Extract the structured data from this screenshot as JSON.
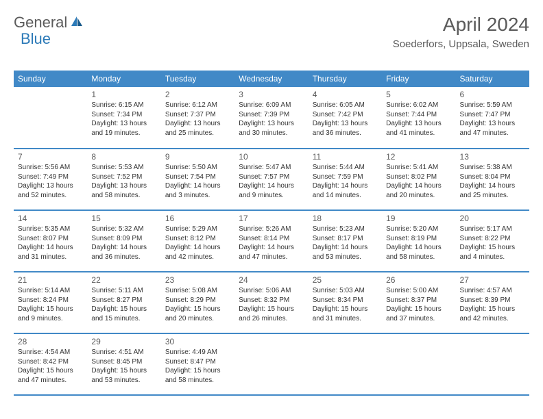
{
  "logo": {
    "general": "General",
    "blue": "Blue"
  },
  "title": {
    "month": "April 2024",
    "location": "Soederfors, Uppsala, Sweden"
  },
  "weekdays": [
    "Sunday",
    "Monday",
    "Tuesday",
    "Wednesday",
    "Thursday",
    "Friday",
    "Saturday"
  ],
  "colors": {
    "header_bg": "#4189c7",
    "accent": "#2c7ab8",
    "text_gray": "#5a5a5a"
  },
  "days": {
    "1": {
      "sunrise": "Sunrise: 6:15 AM",
      "sunset": "Sunset: 7:34 PM",
      "daylight": "Daylight: 13 hours and 19 minutes."
    },
    "2": {
      "sunrise": "Sunrise: 6:12 AM",
      "sunset": "Sunset: 7:37 PM",
      "daylight": "Daylight: 13 hours and 25 minutes."
    },
    "3": {
      "sunrise": "Sunrise: 6:09 AM",
      "sunset": "Sunset: 7:39 PM",
      "daylight": "Daylight: 13 hours and 30 minutes."
    },
    "4": {
      "sunrise": "Sunrise: 6:05 AM",
      "sunset": "Sunset: 7:42 PM",
      "daylight": "Daylight: 13 hours and 36 minutes."
    },
    "5": {
      "sunrise": "Sunrise: 6:02 AM",
      "sunset": "Sunset: 7:44 PM",
      "daylight": "Daylight: 13 hours and 41 minutes."
    },
    "6": {
      "sunrise": "Sunrise: 5:59 AM",
      "sunset": "Sunset: 7:47 PM",
      "daylight": "Daylight: 13 hours and 47 minutes."
    },
    "7": {
      "sunrise": "Sunrise: 5:56 AM",
      "sunset": "Sunset: 7:49 PM",
      "daylight": "Daylight: 13 hours and 52 minutes."
    },
    "8": {
      "sunrise": "Sunrise: 5:53 AM",
      "sunset": "Sunset: 7:52 PM",
      "daylight": "Daylight: 13 hours and 58 minutes."
    },
    "9": {
      "sunrise": "Sunrise: 5:50 AM",
      "sunset": "Sunset: 7:54 PM",
      "daylight": "Daylight: 14 hours and 3 minutes."
    },
    "10": {
      "sunrise": "Sunrise: 5:47 AM",
      "sunset": "Sunset: 7:57 PM",
      "daylight": "Daylight: 14 hours and 9 minutes."
    },
    "11": {
      "sunrise": "Sunrise: 5:44 AM",
      "sunset": "Sunset: 7:59 PM",
      "daylight": "Daylight: 14 hours and 14 minutes."
    },
    "12": {
      "sunrise": "Sunrise: 5:41 AM",
      "sunset": "Sunset: 8:02 PM",
      "daylight": "Daylight: 14 hours and 20 minutes."
    },
    "13": {
      "sunrise": "Sunrise: 5:38 AM",
      "sunset": "Sunset: 8:04 PM",
      "daylight": "Daylight: 14 hours and 25 minutes."
    },
    "14": {
      "sunrise": "Sunrise: 5:35 AM",
      "sunset": "Sunset: 8:07 PM",
      "daylight": "Daylight: 14 hours and 31 minutes."
    },
    "15": {
      "sunrise": "Sunrise: 5:32 AM",
      "sunset": "Sunset: 8:09 PM",
      "daylight": "Daylight: 14 hours and 36 minutes."
    },
    "16": {
      "sunrise": "Sunrise: 5:29 AM",
      "sunset": "Sunset: 8:12 PM",
      "daylight": "Daylight: 14 hours and 42 minutes."
    },
    "17": {
      "sunrise": "Sunrise: 5:26 AM",
      "sunset": "Sunset: 8:14 PM",
      "daylight": "Daylight: 14 hours and 47 minutes."
    },
    "18": {
      "sunrise": "Sunrise: 5:23 AM",
      "sunset": "Sunset: 8:17 PM",
      "daylight": "Daylight: 14 hours and 53 minutes."
    },
    "19": {
      "sunrise": "Sunrise: 5:20 AM",
      "sunset": "Sunset: 8:19 PM",
      "daylight": "Daylight: 14 hours and 58 minutes."
    },
    "20": {
      "sunrise": "Sunrise: 5:17 AM",
      "sunset": "Sunset: 8:22 PM",
      "daylight": "Daylight: 15 hours and 4 minutes."
    },
    "21": {
      "sunrise": "Sunrise: 5:14 AM",
      "sunset": "Sunset: 8:24 PM",
      "daylight": "Daylight: 15 hours and 9 minutes."
    },
    "22": {
      "sunrise": "Sunrise: 5:11 AM",
      "sunset": "Sunset: 8:27 PM",
      "daylight": "Daylight: 15 hours and 15 minutes."
    },
    "23": {
      "sunrise": "Sunrise: 5:08 AM",
      "sunset": "Sunset: 8:29 PM",
      "daylight": "Daylight: 15 hours and 20 minutes."
    },
    "24": {
      "sunrise": "Sunrise: 5:06 AM",
      "sunset": "Sunset: 8:32 PM",
      "daylight": "Daylight: 15 hours and 26 minutes."
    },
    "25": {
      "sunrise": "Sunrise: 5:03 AM",
      "sunset": "Sunset: 8:34 PM",
      "daylight": "Daylight: 15 hours and 31 minutes."
    },
    "26": {
      "sunrise": "Sunrise: 5:00 AM",
      "sunset": "Sunset: 8:37 PM",
      "daylight": "Daylight: 15 hours and 37 minutes."
    },
    "27": {
      "sunrise": "Sunrise: 4:57 AM",
      "sunset": "Sunset: 8:39 PM",
      "daylight": "Daylight: 15 hours and 42 minutes."
    },
    "28": {
      "sunrise": "Sunrise: 4:54 AM",
      "sunset": "Sunset: 8:42 PM",
      "daylight": "Daylight: 15 hours and 47 minutes."
    },
    "29": {
      "sunrise": "Sunrise: 4:51 AM",
      "sunset": "Sunset: 8:45 PM",
      "daylight": "Daylight: 15 hours and 53 minutes."
    },
    "30": {
      "sunrise": "Sunrise: 4:49 AM",
      "sunset": "Sunset: 8:47 PM",
      "daylight": "Daylight: 15 hours and 58 minutes."
    }
  },
  "layout": {
    "first_day_offset": 1,
    "total_days": 30
  }
}
